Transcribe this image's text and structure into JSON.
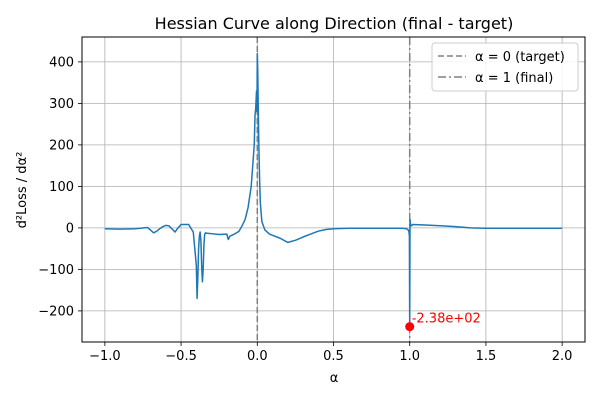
{
  "chart_data": {
    "type": "line",
    "title": "Hessian Curve along Direction (final - target)",
    "xlabel": "α",
    "ylabel": "d²Loss / dα²",
    "xlim": [
      -1.15,
      2.15
    ],
    "ylim": [
      -275,
      460
    ],
    "xticks": [
      -1.0,
      -0.5,
      0.0,
      0.5,
      1.0,
      1.5,
      2.0
    ],
    "xtick_labels": [
      "−1.0",
      "−0.5",
      "0.0",
      "0.5",
      "1.0",
      "1.5",
      "2.0"
    ],
    "yticks": [
      -200,
      -100,
      0,
      100,
      200,
      300,
      400
    ],
    "ytick_labels": [
      "−200",
      "−100",
      "0",
      "100",
      "200",
      "300",
      "400"
    ],
    "grid": true,
    "legend_position": "top-right",
    "colors": {
      "curve": "#1f77b4",
      "reference_lines": "#808080",
      "marker": "#ff0000",
      "grid": "#b0b0b0"
    },
    "series": [
      {
        "x": [
          -1.0,
          -0.9,
          -0.8,
          -0.72,
          -0.68,
          -0.66,
          -0.64,
          -0.62,
          -0.6,
          -0.58,
          -0.56,
          -0.54,
          -0.52,
          -0.5,
          -0.48,
          -0.45,
          -0.42,
          -0.4,
          -0.395,
          -0.39,
          -0.385,
          -0.38,
          -0.375,
          -0.37,
          -0.365,
          -0.36,
          -0.355,
          -0.35,
          -0.345,
          -0.34,
          -0.33,
          -0.3,
          -0.25,
          -0.2,
          -0.19,
          -0.18,
          -0.15,
          -0.12,
          -0.1,
          -0.08,
          -0.06,
          -0.04,
          -0.03,
          -0.02,
          -0.015,
          -0.01,
          -0.005,
          -0.002,
          0.0,
          0.003,
          0.006,
          0.01,
          0.015,
          0.02,
          0.03,
          0.05,
          0.08,
          0.1,
          0.15,
          0.2,
          0.25,
          0.3,
          0.35,
          0.4,
          0.45,
          0.5,
          0.6,
          0.7,
          0.8,
          0.9,
          0.95,
          0.98,
          0.99,
          0.995,
          0.998,
          1.0,
          1.002,
          1.005,
          1.01,
          1.02,
          1.1,
          1.2,
          1.3,
          1.4,
          1.5,
          1.6,
          1.7,
          1.8,
          1.9,
          2.0
        ],
        "y": [
          -2,
          -3,
          -2,
          1,
          -12,
          -8,
          -2,
          3,
          6,
          5,
          -2,
          -10,
          0,
          8,
          8,
          8,
          -10,
          -90,
          -170,
          -120,
          -50,
          -20,
          -10,
          -30,
          -90,
          -130,
          -100,
          -40,
          -15,
          -12,
          -13,
          -14,
          -16,
          -15,
          -28,
          -20,
          -15,
          -8,
          5,
          20,
          50,
          100,
          150,
          200,
          270,
          290,
          330,
          280,
          420,
          380,
          300,
          200,
          120,
          60,
          15,
          -5,
          -15,
          -18,
          -25,
          -35,
          -30,
          -22,
          -15,
          -8,
          -4,
          -2,
          -1,
          -1,
          -1,
          -1,
          -1,
          -2,
          -5,
          -10,
          -20,
          -238,
          20,
          10,
          5,
          8,
          7,
          5,
          3,
          0,
          -1,
          -1,
          -1,
          -1,
          -1,
          -1
        ]
      }
    ],
    "reference_lines": [
      {
        "x": 0,
        "style": "dashed",
        "label": "α = 0 (target)"
      },
      {
        "x": 1,
        "style": "dashdot",
        "label": "α = 1 (final)"
      }
    ],
    "annotation": {
      "x": 1.0,
      "y": -238,
      "label": "-2.38e+02"
    }
  }
}
